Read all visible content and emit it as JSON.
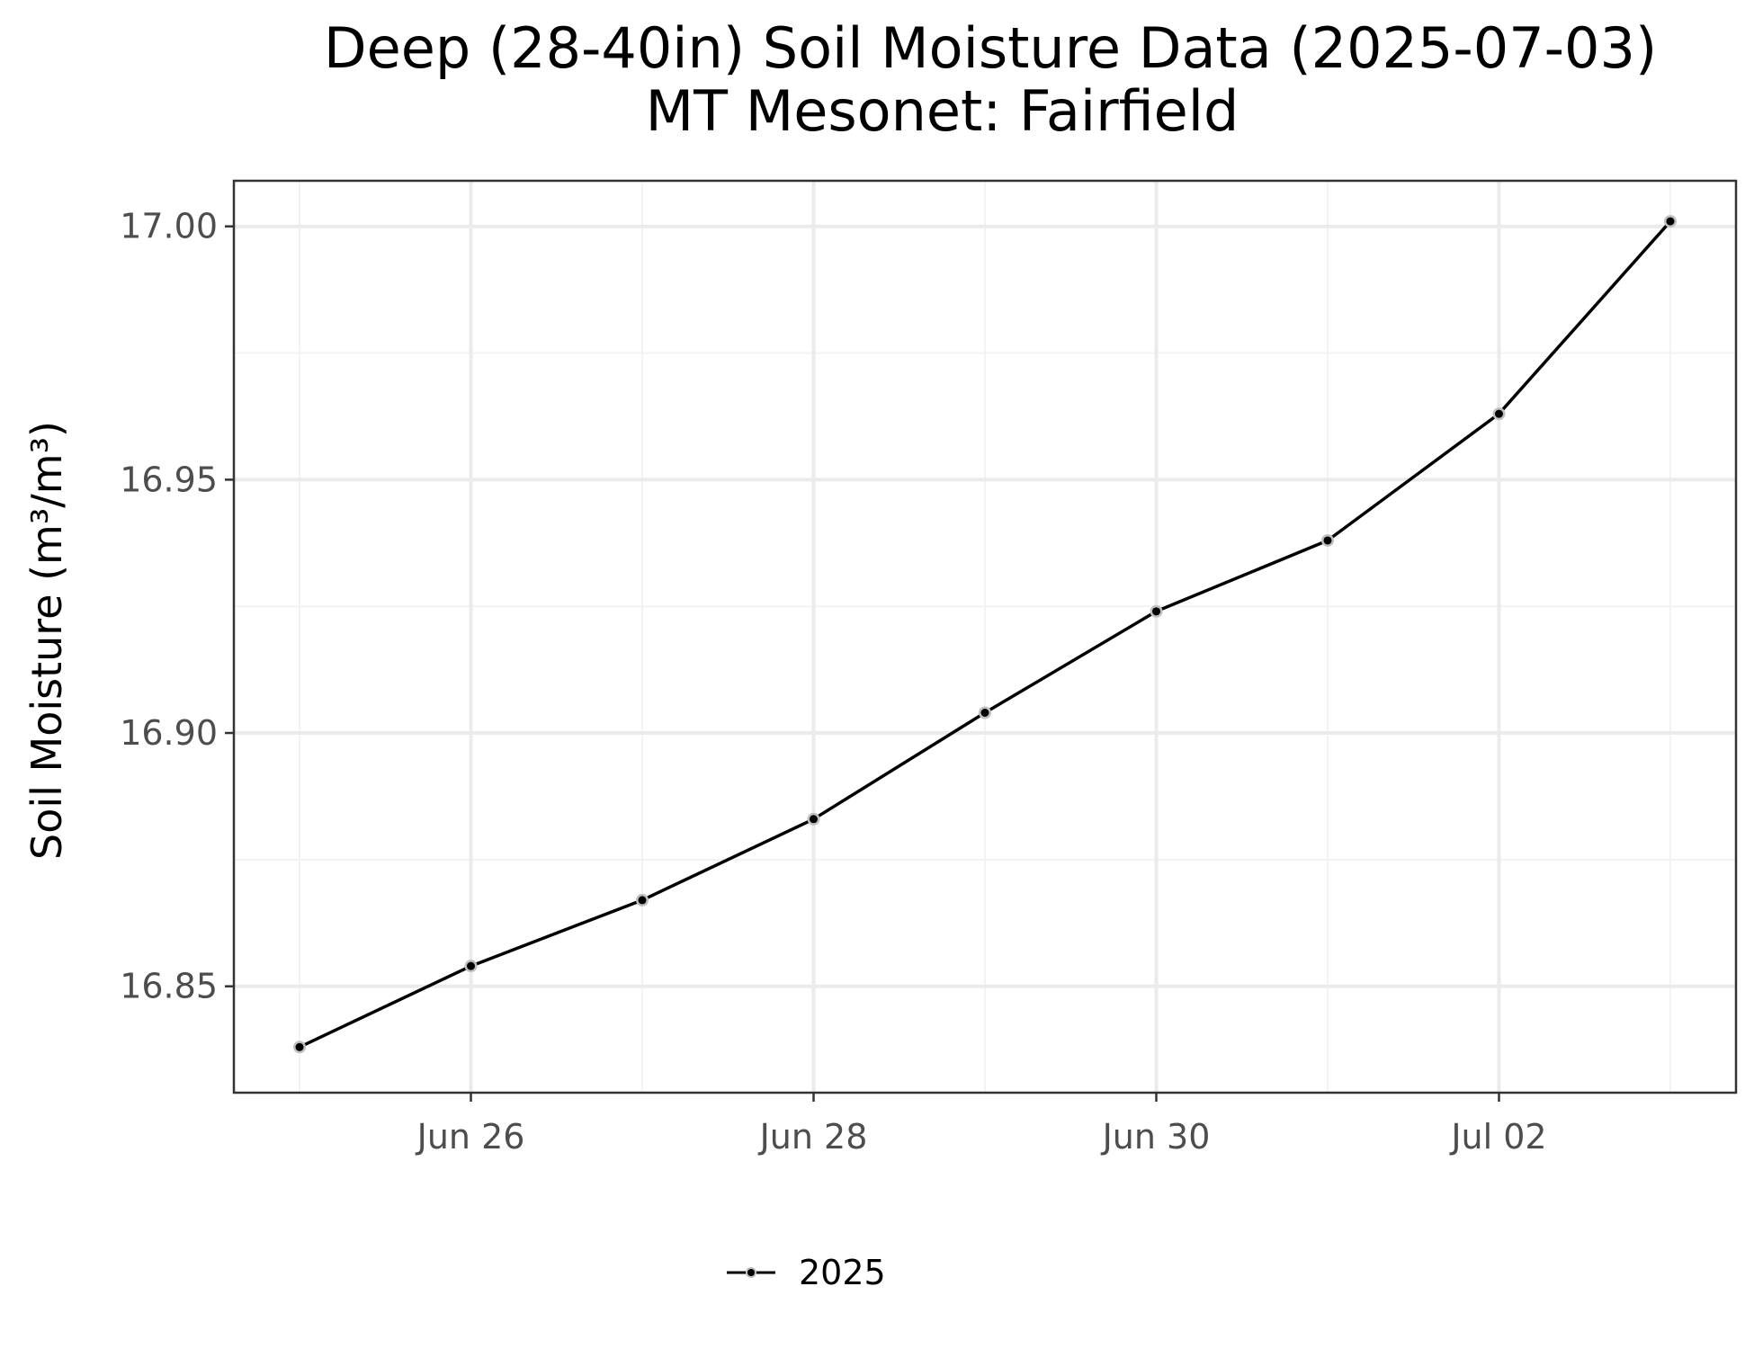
{
  "title": {
    "line1": "Deep (28-40in) Soil Moisture Data (2025-07-03)",
    "line2": "MT Mesonet: Fairfield"
  },
  "colors": {
    "series": "#000000",
    "point_fill": "#000000",
    "point_outline": "#bfbfbf",
    "grid_major": "#ebebeb",
    "grid_minor": "#f3f3f3",
    "panel_border": "#333333",
    "tick_text": "#4d4d4d"
  },
  "chart_data": {
    "type": "line",
    "title": "Deep (28-40in) Soil Moisture Data (2025-07-03)\nMT Mesonet: Fairfield",
    "xlabel": "",
    "ylabel": "Soil Moisture (m³/m³)",
    "x": [
      "2025-06-25",
      "2025-06-26",
      "2025-06-27",
      "2025-06-28",
      "2025-06-29",
      "2025-06-30",
      "2025-07-01",
      "2025-07-02",
      "2025-07-03"
    ],
    "x_ticks": [
      "Jun 26",
      "Jun 28",
      "Jun 30",
      "Jul 02"
    ],
    "y_ticks": [
      "16.85",
      "16.90",
      "16.95",
      "17.00"
    ],
    "ylim": [
      16.829,
      17.009
    ],
    "grid": true,
    "legend_position": "bottom",
    "series": [
      {
        "name": "2025",
        "values": [
          16.838,
          16.854,
          16.867,
          16.883,
          16.904,
          16.924,
          16.938,
          16.963,
          17.001
        ]
      }
    ]
  }
}
